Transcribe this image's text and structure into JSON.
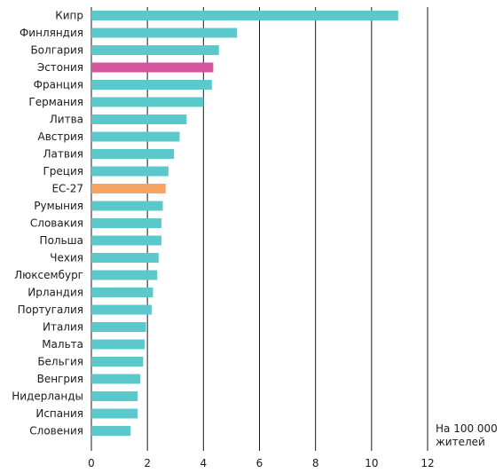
{
  "chart_data": {
    "type": "bar",
    "orientation": "horizontal",
    "categories": [
      "Кипр",
      "Финляндия",
      "Болгария",
      "Эстония",
      "Франция",
      "Германия",
      "Литва",
      "Австрия",
      "Латвия",
      "Греция",
      "ЕС-27",
      "Румыния",
      "Словакия",
      "Польша",
      "Чехия",
      "Люксембург",
      "Ирландия",
      "Португалия",
      "Италия",
      "Мальта",
      "Бельгия",
      "Венгрия",
      "Нидерланды",
      "Испания",
      "Словения"
    ],
    "values": [
      10.95,
      5.2,
      4.55,
      4.35,
      4.3,
      4.0,
      3.4,
      3.15,
      2.95,
      2.75,
      2.65,
      2.55,
      2.5,
      2.5,
      2.4,
      2.35,
      2.2,
      2.15,
      1.95,
      1.9,
      1.85,
      1.75,
      1.65,
      1.65,
      1.4
    ],
    "highlight": {
      "Эстония": "#d6559e",
      "ЕС-27": "#f7a462"
    },
    "bar_color": "#5bc8cc",
    "xlim": [
      0,
      12
    ],
    "xticks": [
      "0",
      "2",
      "4",
      "6",
      "8",
      "10",
      "12"
    ],
    "unit_label": [
      "На 100 000",
      "жителей"
    ],
    "grid": true
  }
}
